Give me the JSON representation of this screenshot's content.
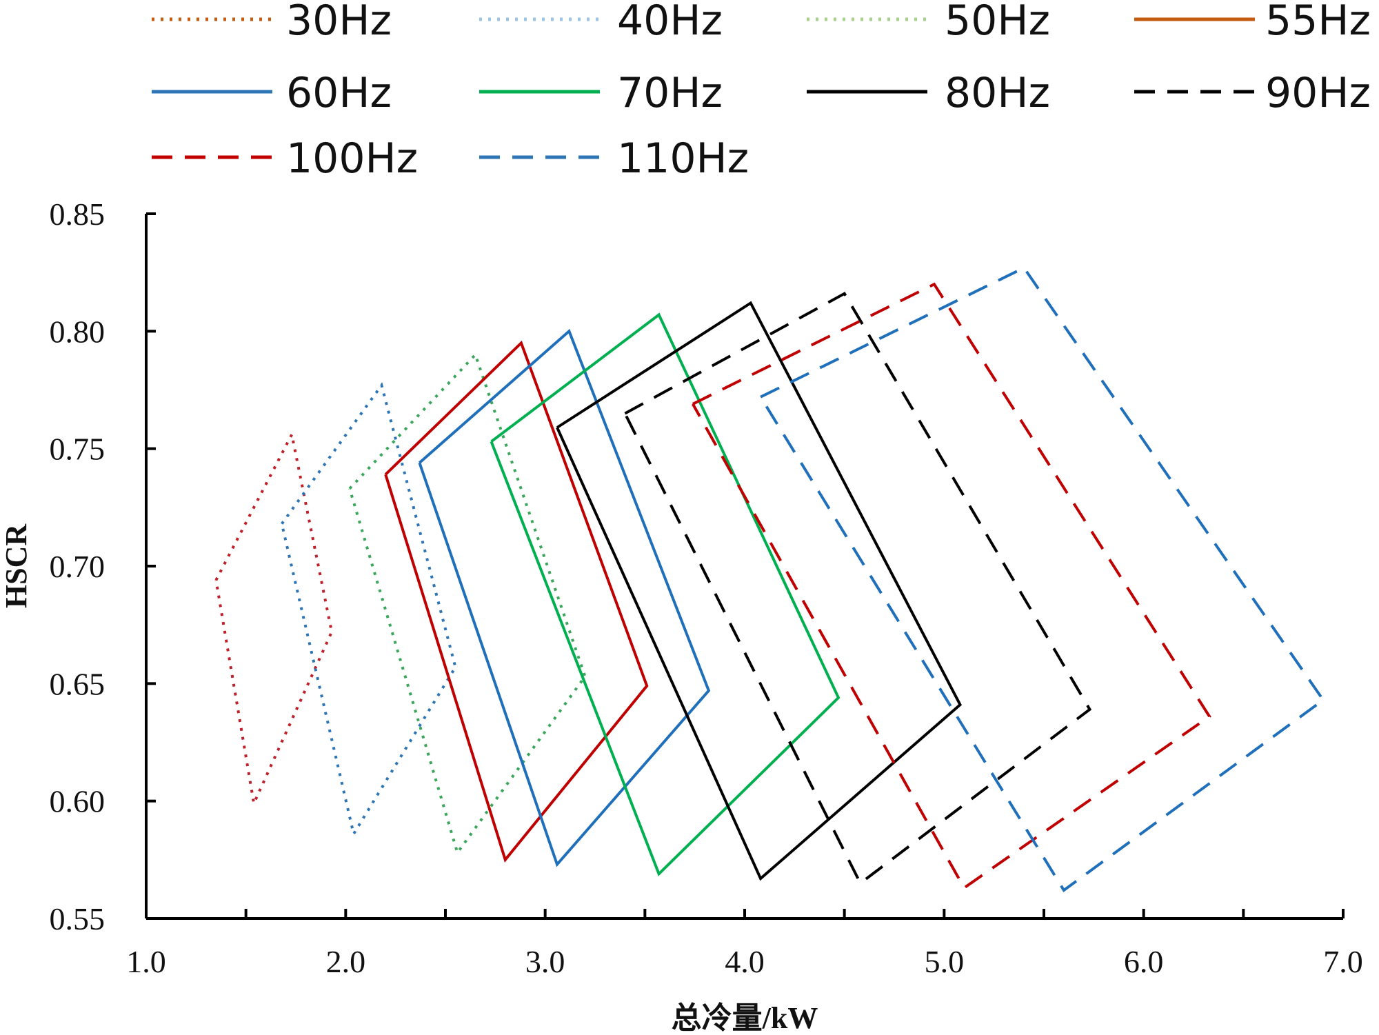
{
  "chart_data": {
    "type": "line",
    "title": "",
    "xlabel": "总冷量/kW",
    "ylabel": "HSCR",
    "xlim": [
      1.0,
      7.0
    ],
    "ylim": [
      0.55,
      0.85
    ],
    "xticks": [
      "1.0",
      "2.0",
      "3.0",
      "4.0",
      "5.0",
      "6.0",
      "7.0"
    ],
    "yticks": [
      "0.55",
      "0.60",
      "0.65",
      "0.70",
      "0.75",
      "0.80",
      "0.85"
    ],
    "grid": false,
    "legend_position": "top",
    "series": [
      {
        "name": "30Hz",
        "color": "#c0202a",
        "legend_color": "#c55a11",
        "style": "dotted",
        "points": [
          [
            1.35,
            0.694
          ],
          [
            1.73,
            0.756
          ],
          [
            1.93,
            0.672
          ],
          [
            1.54,
            0.599
          ],
          [
            1.35,
            0.694
          ]
        ]
      },
      {
        "name": "40Hz",
        "color": "#2e75b6",
        "legend_color": "#9dc3e6",
        "style": "dotted",
        "points": [
          [
            1.68,
            0.718
          ],
          [
            2.18,
            0.777
          ],
          [
            2.55,
            0.657
          ],
          [
            2.04,
            0.586
          ],
          [
            1.68,
            0.718
          ]
        ]
      },
      {
        "name": "50Hz",
        "color": "#3aa65a",
        "legend_color": "#a9d18e",
        "style": "dotted",
        "points": [
          [
            2.02,
            0.733
          ],
          [
            2.65,
            0.79
          ],
          [
            3.2,
            0.653
          ],
          [
            2.56,
            0.578
          ],
          [
            2.02,
            0.733
          ]
        ]
      },
      {
        "name": "55Hz",
        "color": "#c00000",
        "legend_color": "#c55a11",
        "style": "solid",
        "points": [
          [
            2.2,
            0.739
          ],
          [
            2.88,
            0.795
          ],
          [
            3.51,
            0.649
          ],
          [
            2.8,
            0.575
          ],
          [
            2.2,
            0.739
          ]
        ]
      },
      {
        "name": "60Hz",
        "color": "#1f6fba",
        "legend_color": "#2e75b6",
        "style": "solid",
        "points": [
          [
            2.37,
            0.744
          ],
          [
            3.12,
            0.8
          ],
          [
            3.82,
            0.647
          ],
          [
            3.06,
            0.573
          ],
          [
            2.37,
            0.744
          ]
        ]
      },
      {
        "name": "70Hz",
        "color": "#00b050",
        "legend_color": "#00b050",
        "style": "solid",
        "points": [
          [
            2.73,
            0.753
          ],
          [
            3.57,
            0.807
          ],
          [
            4.47,
            0.644
          ],
          [
            3.57,
            0.569
          ],
          [
            2.73,
            0.753
          ]
        ]
      },
      {
        "name": "80Hz",
        "color": "#000000",
        "legend_color": "#000000",
        "style": "solid",
        "points": [
          [
            3.06,
            0.759
          ],
          [
            4.03,
            0.812
          ],
          [
            5.08,
            0.641
          ],
          [
            4.08,
            0.567
          ],
          [
            3.06,
            0.759
          ]
        ]
      },
      {
        "name": "90Hz",
        "color": "#000000",
        "legend_color": "#000000",
        "style": "dashed",
        "points": [
          [
            3.4,
            0.765
          ],
          [
            4.5,
            0.816
          ],
          [
            5.73,
            0.639
          ],
          [
            4.58,
            0.565
          ],
          [
            3.4,
            0.765
          ]
        ]
      },
      {
        "name": "100Hz",
        "color": "#c00000",
        "legend_color": "#c00000",
        "style": "dashed",
        "points": [
          [
            3.74,
            0.769
          ],
          [
            4.95,
            0.82
          ],
          [
            6.33,
            0.636
          ],
          [
            5.1,
            0.563
          ],
          [
            3.74,
            0.769
          ]
        ]
      },
      {
        "name": "110Hz",
        "color": "#1f6fba",
        "legend_color": "#2e75b6",
        "style": "dashed",
        "points": [
          [
            4.08,
            0.772
          ],
          [
            5.4,
            0.827
          ],
          [
            6.9,
            0.643
          ],
          [
            5.6,
            0.562
          ],
          [
            4.08,
            0.772
          ]
        ]
      }
    ]
  }
}
